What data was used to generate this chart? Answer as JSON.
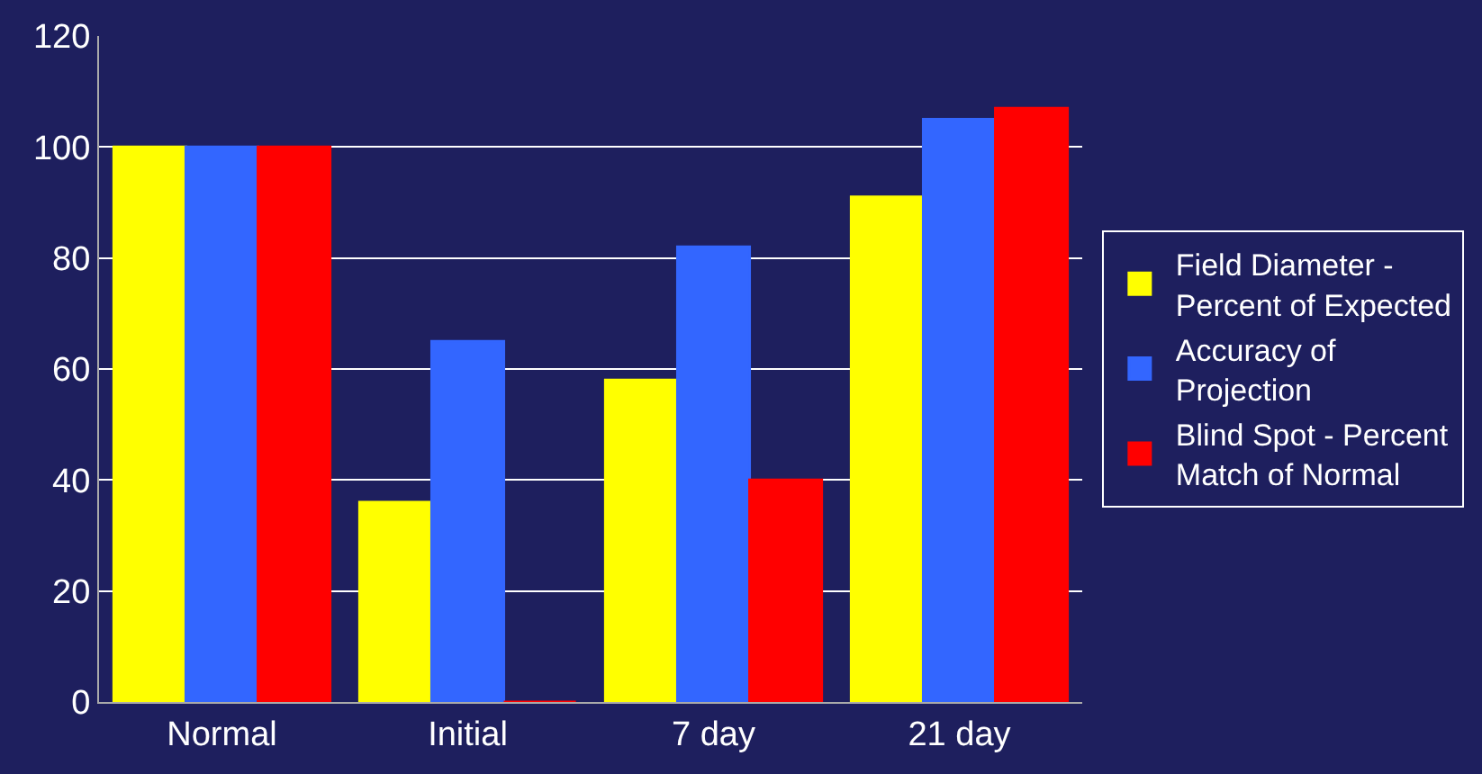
{
  "chart_data": {
    "type": "bar",
    "categories": [
      "Normal",
      "Initial",
      "7 day",
      "21 day"
    ],
    "series": [
      {
        "name": "Field Diameter - Percent of Expected",
        "color": "#ffff00",
        "values": [
          100,
          36,
          58,
          91
        ]
      },
      {
        "name": "Accuracy of Projection",
        "color": "#3366ff",
        "values": [
          100,
          65,
          82,
          105
        ]
      },
      {
        "name": "Blind Spot - Percent Match of Normal",
        "color": "#ff0000",
        "values": [
          100,
          0,
          40,
          107
        ]
      }
    ],
    "ylim": [
      0,
      120
    ],
    "yticks": [
      0,
      20,
      40,
      60,
      80,
      100,
      120
    ],
    "grid": "y",
    "legend": "right"
  }
}
